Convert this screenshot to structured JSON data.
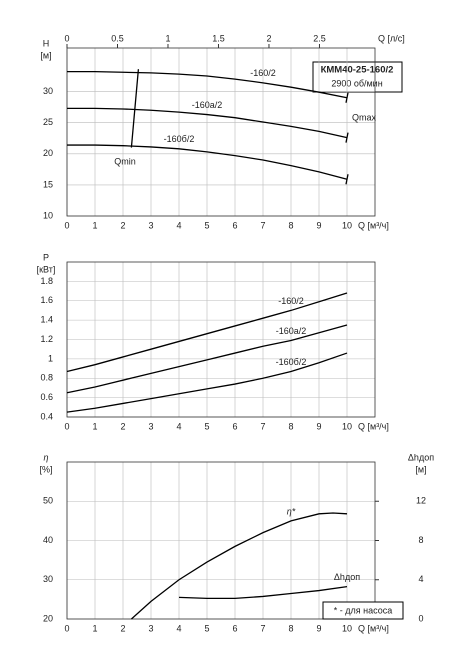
{
  "title": "КММ40-25-160/2",
  "subtitle": "2900 об/мин",
  "chart_data": [
    {
      "type": "line",
      "ylabel": "H",
      "yunit": "[м]",
      "xlabel": "Q [м³/ч]",
      "x2label": "Q [л/с]",
      "xlim": [
        0,
        11
      ],
      "xticks": [
        0,
        1,
        2,
        3,
        4,
        5,
        6,
        7,
        8,
        9,
        10
      ],
      "x2lim": [
        0,
        3.05
      ],
      "x2ticks": [
        0,
        0.5,
        1,
        1.5,
        2,
        2.5
      ],
      "ylim": [
        10,
        37
      ],
      "yticks": [
        10,
        15,
        20,
        25,
        30
      ],
      "x": [
        0,
        1,
        2,
        3,
        4,
        5,
        6,
        7,
        8,
        9,
        10
      ],
      "series": [
        {
          "name": "-160/2",
          "color": "#000000",
          "values": [
            33.2,
            33.2,
            33.1,
            33.0,
            32.8,
            32.5,
            32.0,
            31.4,
            30.7,
            29.9,
            29.0
          ]
        },
        {
          "name": "-160а/2",
          "color": "#000000",
          "values": [
            27.3,
            27.3,
            27.2,
            27.0,
            26.7,
            26.3,
            25.8,
            25.1,
            24.4,
            23.6,
            22.6
          ]
        },
        {
          "name": "-160б/2",
          "color": "#000000",
          "values": [
            21.4,
            21.4,
            21.3,
            21.1,
            20.8,
            20.3,
            19.7,
            19.0,
            18.1,
            17.1,
            15.9
          ]
        }
      ],
      "qmin": {
        "name": "Qmin",
        "x": [
          2.3,
          2.55
        ],
        "values": [
          21.0,
          33.6
        ]
      },
      "qmax": "Qmax",
      "grid": true
    },
    {
      "type": "line",
      "ylabel": "P",
      "yunit": "[кВт]",
      "xlabel": "Q [м³/ч]",
      "xlim": [
        0,
        11
      ],
      "xticks": [
        0,
        1,
        2,
        3,
        4,
        5,
        6,
        7,
        8,
        9,
        10
      ],
      "ylim": [
        0.4,
        2.0
      ],
      "yticks": [
        0.4,
        0.6,
        0.8,
        1,
        1.2,
        1.4,
        1.6,
        1.8
      ],
      "x": [
        0,
        1,
        2,
        3,
        4,
        5,
        6,
        7,
        8,
        9,
        10
      ],
      "series": [
        {
          "name": "-160/2",
          "color": "#000000",
          "values": [
            0.87,
            0.94,
            1.02,
            1.1,
            1.18,
            1.26,
            1.34,
            1.42,
            1.5,
            1.59,
            1.68
          ]
        },
        {
          "name": "-160а/2",
          "color": "#000000",
          "values": [
            0.65,
            0.71,
            0.78,
            0.85,
            0.92,
            0.99,
            1.06,
            1.13,
            1.19,
            1.27,
            1.35
          ]
        },
        {
          "name": "-160б/2",
          "color": "#000000",
          "values": [
            0.45,
            0.49,
            0.54,
            0.59,
            0.64,
            0.69,
            0.74,
            0.8,
            0.87,
            0.96,
            1.06
          ]
        }
      ],
      "grid": true
    },
    {
      "type": "line",
      "ylabel": "η",
      "yunit": "[%]",
      "y2label": "Δhдоп",
      "y2unit": "[м]",
      "xlabel": "Q [м³/ч]",
      "xlim": [
        0,
        11
      ],
      "xticks": [
        0,
        1,
        2,
        3,
        4,
        5,
        6,
        7,
        8,
        9,
        10
      ],
      "ylim": [
        20,
        60
      ],
      "yticks": [
        20,
        30,
        40,
        50
      ],
      "y2lim": [
        0,
        16
      ],
      "y2ticks": [
        0,
        4,
        8,
        12
      ],
      "series": [
        {
          "name": "η*",
          "color": "#000000",
          "x": [
            2.3,
            3,
            4,
            5,
            6,
            7,
            8,
            9,
            9.5,
            10
          ],
          "values": [
            20,
            24.5,
            30,
            34.5,
            38.5,
            42,
            45,
            46.8,
            47,
            46.8
          ]
        },
        {
          "name": "Δhдоп",
          "color": "#000000",
          "axis": "y2",
          "x": [
            4,
            5,
            6,
            7,
            8,
            9,
            10
          ],
          "values": [
            2.2,
            2.1,
            2.1,
            2.3,
            2.6,
            2.9,
            3.3
          ]
        }
      ],
      "note": "* - для насоса",
      "grid": true
    }
  ]
}
